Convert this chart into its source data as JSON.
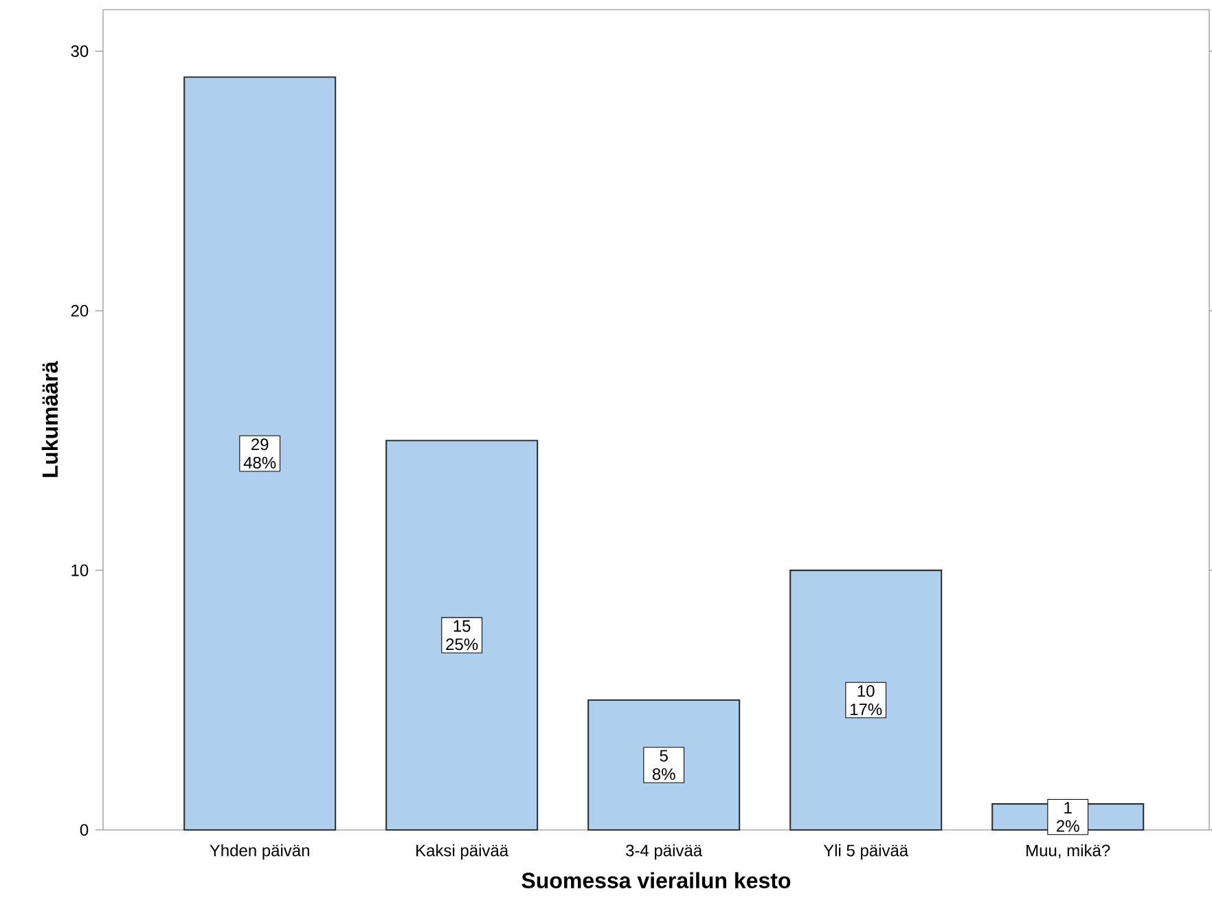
{
  "chart_data": {
    "type": "bar",
    "xlabel": "Suomessa vierailun kesto",
    "ylabel": "Lukumäärä",
    "categories": [
      "Yhden päivän",
      "Kaksi päivää",
      "3-4 päivää",
      "Yli 5 päivää",
      "Muu, mikä?"
    ],
    "values": [
      29,
      15,
      5,
      10,
      1
    ],
    "value_labels": [
      "29 48%",
      "15 25%",
      "5 8%",
      "10 17%",
      "1 2%"
    ],
    "color": "#aecfed",
    "ylim": [
      0,
      31.6
    ],
    "yticks": [
      0,
      10,
      20,
      30
    ],
    "grid": false
  }
}
